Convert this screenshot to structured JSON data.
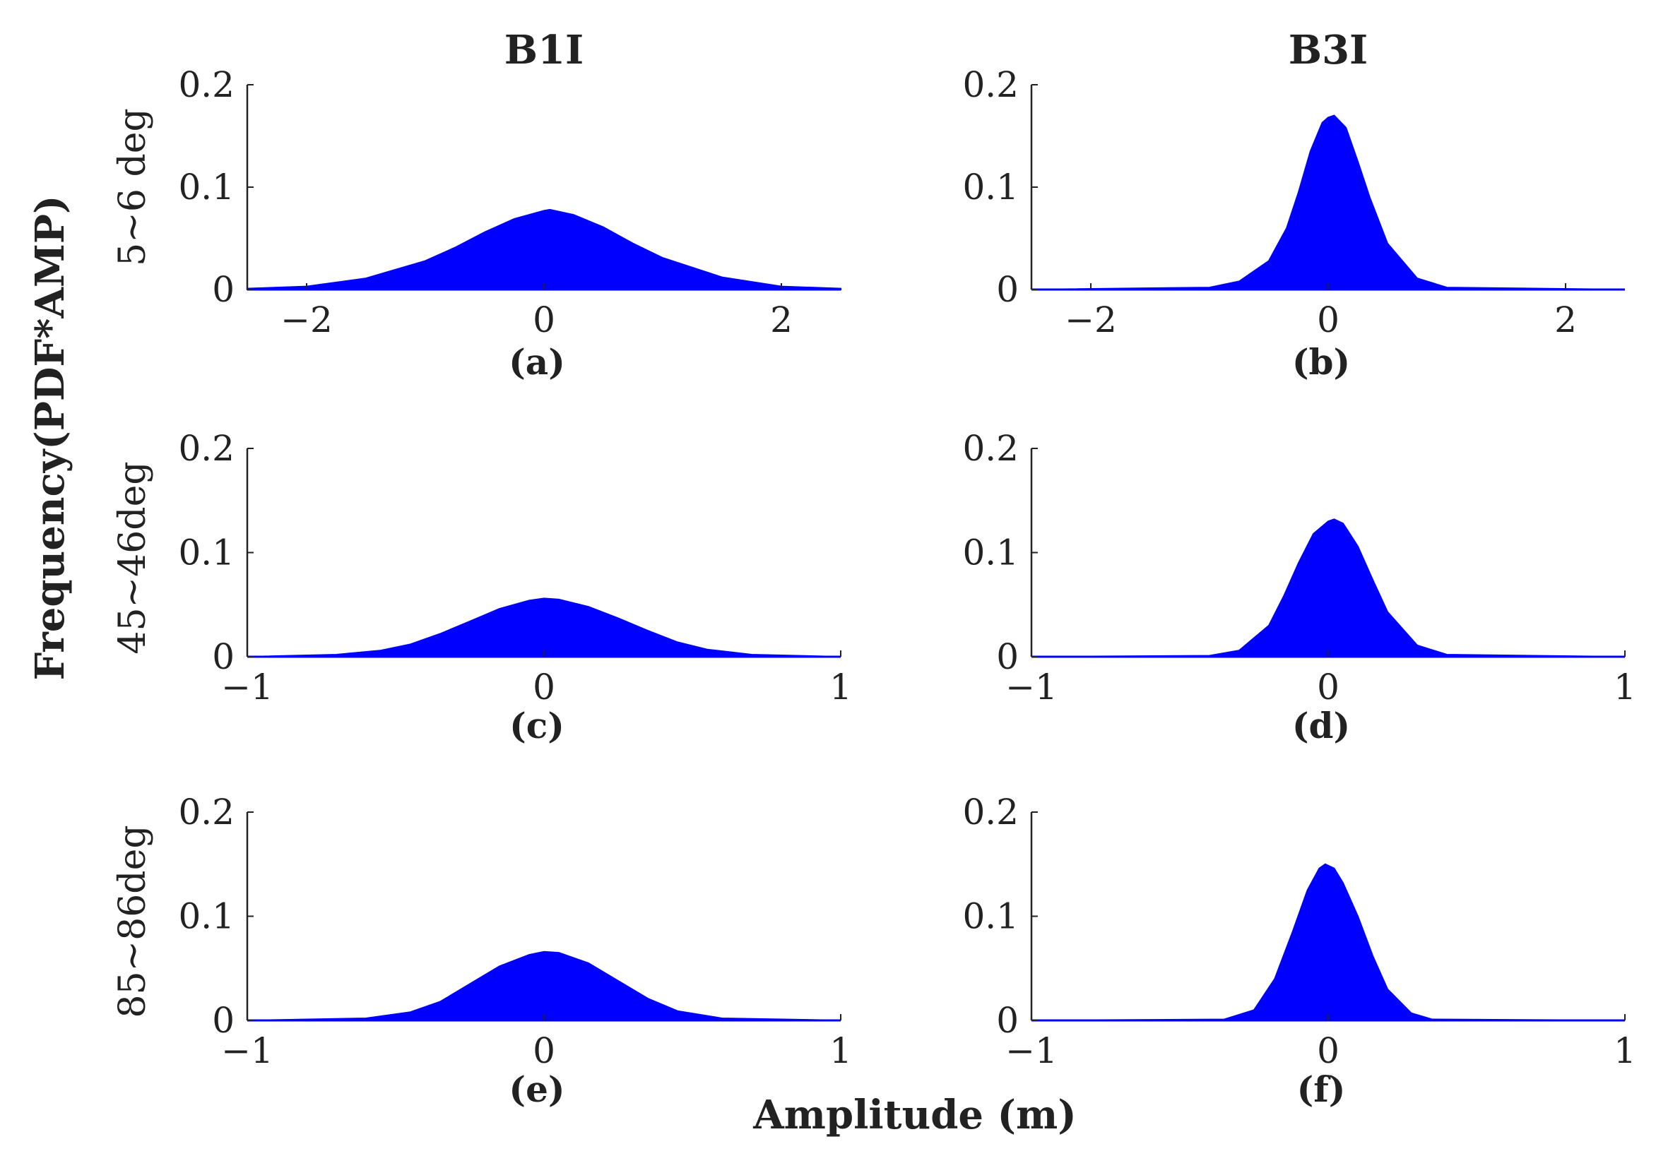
{
  "figure": {
    "column_titles": [
      "B1I",
      "B3I"
    ],
    "ylabel": "Frequency(PDF*AMP)",
    "xlabel": "Amplitude (m)",
    "row_labels": [
      "5~6 deg",
      "45~46deg",
      "85~86deg"
    ],
    "series_color": "#0000ff"
  },
  "chart_data": [
    {
      "type": "area",
      "panel": "(a)",
      "column": "B1I",
      "row_label": "5~6 deg",
      "xlim": [
        -2.5,
        2.5
      ],
      "ylim": [
        0,
        0.2
      ],
      "xticks": [
        -2,
        0,
        2
      ],
      "xtick_labels": [
        "−2",
        "0",
        "2"
      ],
      "yticks": [
        0,
        0.1,
        0.2
      ],
      "ytick_labels": [
        "0",
        "0.1",
        "0.2"
      ],
      "x": [
        -2.5,
        -2.0,
        -1.5,
        -1.0,
        -0.75,
        -0.5,
        -0.25,
        0.0,
        0.05,
        0.25,
        0.5,
        0.75,
        1.0,
        1.5,
        2.0,
        2.5
      ],
      "y": [
        0.001,
        0.003,
        0.011,
        0.028,
        0.041,
        0.056,
        0.069,
        0.077,
        0.078,
        0.073,
        0.061,
        0.045,
        0.031,
        0.012,
        0.003,
        0.001
      ]
    },
    {
      "type": "area",
      "panel": "(b)",
      "column": "B3I",
      "row_label": "5~6 deg",
      "xlim": [
        -2.5,
        2.5
      ],
      "ylim": [
        0,
        0.2
      ],
      "xticks": [
        -2,
        0,
        2
      ],
      "xtick_labels": [
        "−2",
        "0",
        "2"
      ],
      "yticks": [
        0,
        0.1,
        0.2
      ],
      "ytick_labels": [
        "0",
        "0.1",
        "0.2"
      ],
      "x": [
        -2.5,
        -1.0,
        -0.75,
        -0.5,
        -0.35,
        -0.25,
        -0.15,
        -0.05,
        0.0,
        0.05,
        0.15,
        0.25,
        0.35,
        0.5,
        0.75,
        1.0,
        2.5
      ],
      "y": [
        0.0,
        0.002,
        0.008,
        0.028,
        0.06,
        0.095,
        0.135,
        0.163,
        0.168,
        0.17,
        0.158,
        0.125,
        0.09,
        0.045,
        0.011,
        0.002,
        0.0
      ]
    },
    {
      "type": "area",
      "panel": "(c)",
      "column": "B1I",
      "row_label": "45~46deg",
      "xlim": [
        -1,
        1
      ],
      "ylim": [
        0,
        0.2
      ],
      "xticks": [
        -1,
        0,
        1
      ],
      "xtick_labels": [
        "−1",
        "0",
        "1"
      ],
      "yticks": [
        0,
        0.1,
        0.2
      ],
      "ytick_labels": [
        "0",
        "0.1",
        "0.2"
      ],
      "x": [
        -1.0,
        -0.7,
        -0.55,
        -0.45,
        -0.35,
        -0.25,
        -0.15,
        -0.05,
        0.0,
        0.05,
        0.15,
        0.25,
        0.35,
        0.45,
        0.55,
        0.7,
        1.0
      ],
      "y": [
        0.0,
        0.002,
        0.006,
        0.012,
        0.022,
        0.034,
        0.046,
        0.054,
        0.056,
        0.055,
        0.048,
        0.037,
        0.025,
        0.014,
        0.007,
        0.002,
        0.0
      ]
    },
    {
      "type": "area",
      "panel": "(d)",
      "column": "B3I",
      "row_label": "45~46deg",
      "xlim": [
        -1,
        1
      ],
      "ylim": [
        0,
        0.2
      ],
      "xticks": [
        -1,
        0,
        1
      ],
      "xtick_labels": [
        "−1",
        "0",
        "1"
      ],
      "yticks": [
        0,
        0.1,
        0.2
      ],
      "ytick_labels": [
        "0",
        "0.1",
        "0.2"
      ],
      "x": [
        -1.0,
        -0.4,
        -0.3,
        -0.2,
        -0.15,
        -0.1,
        -0.05,
        0.0,
        0.02,
        0.05,
        0.1,
        0.15,
        0.2,
        0.3,
        0.4,
        1.0
      ],
      "y": [
        0.0,
        0.001,
        0.006,
        0.03,
        0.058,
        0.09,
        0.118,
        0.13,
        0.132,
        0.128,
        0.106,
        0.074,
        0.043,
        0.011,
        0.002,
        0.0
      ]
    },
    {
      "type": "area",
      "panel": "(e)",
      "column": "B1I",
      "row_label": "85~86deg",
      "xlim": [
        -1,
        1
      ],
      "ylim": [
        0,
        0.2
      ],
      "xticks": [
        -1,
        0,
        1
      ],
      "xtick_labels": [
        "−1",
        "0",
        "1"
      ],
      "yticks": [
        0,
        0.1,
        0.2
      ],
      "ytick_labels": [
        "0",
        "0.1",
        "0.2"
      ],
      "x": [
        -1.0,
        -0.6,
        -0.45,
        -0.35,
        -0.25,
        -0.15,
        -0.05,
        0.0,
        0.05,
        0.15,
        0.25,
        0.35,
        0.45,
        0.6,
        1.0
      ],
      "y": [
        0.0,
        0.002,
        0.008,
        0.018,
        0.035,
        0.052,
        0.063,
        0.066,
        0.065,
        0.055,
        0.038,
        0.021,
        0.009,
        0.002,
        0.0
      ]
    },
    {
      "type": "area",
      "panel": "(f)",
      "column": "B3I",
      "row_label": "85~86deg",
      "xlim": [
        -1,
        1
      ],
      "ylim": [
        0,
        0.2
      ],
      "xticks": [
        -1,
        0,
        1
      ],
      "xtick_labels": [
        "−1",
        "0",
        "1"
      ],
      "yticks": [
        0,
        0.1,
        0.2
      ],
      "ytick_labels": [
        "0",
        "0.1",
        "0.2"
      ],
      "x": [
        -1.0,
        -0.35,
        -0.25,
        -0.18,
        -0.12,
        -0.07,
        -0.03,
        -0.01,
        0.02,
        0.05,
        0.1,
        0.15,
        0.2,
        0.28,
        0.35,
        1.0
      ],
      "y": [
        0.0,
        0.001,
        0.01,
        0.04,
        0.085,
        0.125,
        0.146,
        0.15,
        0.146,
        0.132,
        0.1,
        0.062,
        0.03,
        0.007,
        0.001,
        0.0
      ]
    }
  ]
}
